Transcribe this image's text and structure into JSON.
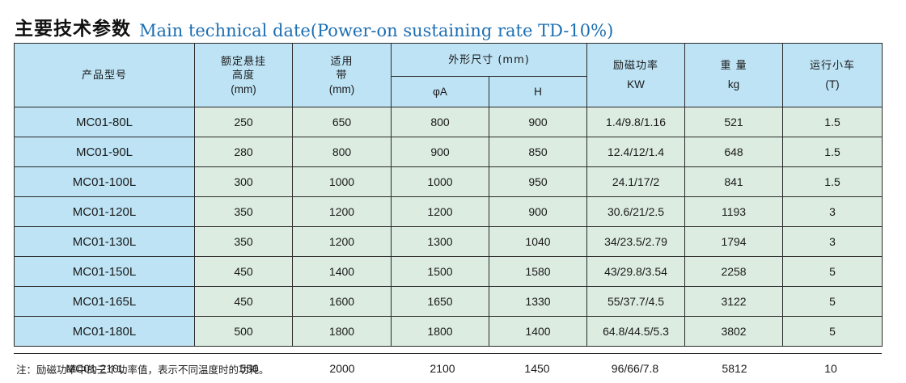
{
  "title": {
    "cn": "主要技术参数",
    "en": "Main technical date(Power-on sustaining rate TD-10%)"
  },
  "headers": {
    "model": "产品型号",
    "height_l1": "额定悬挂",
    "height_l2": "高度",
    "height_l3": "(mm)",
    "belt_l1": "适用",
    "belt_l2": "带",
    "belt_l3": "(mm)",
    "dims": "外形尺寸 (mm)",
    "dim_a": "φA",
    "dim_h": "H",
    "power_l1": "励磁功率",
    "power_l2": "KW",
    "weight_l1": "重 量",
    "weight_l2": "kg",
    "trolley_l1": "运行小车",
    "trolley_l2": "(T)"
  },
  "rows": [
    {
      "model": "MC01-80L",
      "height": "250",
      "belt": "650",
      "a": "800",
      "h": "900",
      "power": "1.4/9.8/1.16",
      "weight": "521",
      "trolley": "1.5"
    },
    {
      "model": "MC01-90L",
      "height": "280",
      "belt": "800",
      "a": "900",
      "h": "850",
      "power": "12.4/12/1.4",
      "weight": "648",
      "trolley": "1.5"
    },
    {
      "model": "MC01-100L",
      "height": "300",
      "belt": "1000",
      "a": "1000",
      "h": "950",
      "power": "24.1/17/2",
      "weight": "841",
      "trolley": "1.5"
    },
    {
      "model": "MC01-120L",
      "height": "350",
      "belt": "1200",
      "a": "1200",
      "h": "900",
      "power": "30.6/21/2.5",
      "weight": "1193",
      "trolley": "3"
    },
    {
      "model": "MC01-130L",
      "height": "350",
      "belt": "1200",
      "a": "1300",
      "h": "1040",
      "power": "34/23.5/2.79",
      "weight": "1794",
      "trolley": "3"
    },
    {
      "model": "MC01-150L",
      "height": "450",
      "belt": "1400",
      "a": "1500",
      "h": "1580",
      "power": "43/29.8/3.54",
      "weight": "2258",
      "trolley": "5"
    },
    {
      "model": "MC01-165L",
      "height": "450",
      "belt": "1600",
      "a": "1650",
      "h": "1330",
      "power": "55/37.7/4.5",
      "weight": "3122",
      "trolley": "5"
    },
    {
      "model": "MC01-180L",
      "height": "500",
      "belt": "1800",
      "a": "1800",
      "h": "1400",
      "power": "64.8/44.5/5.3",
      "weight": "3802",
      "trolley": "5"
    }
  ],
  "last_row": {
    "model": "MC01-210L",
    "height": "550",
    "belt": "2000",
    "a": "2100",
    "h": "1450",
    "power": "96/66/7.8",
    "weight": "5812",
    "trolley": "10"
  },
  "note": "注：励磁功率中的三个功率值，表示不同温度时的功耗。",
  "colors": {
    "header_bg": "#bde3f5",
    "body_bg": "#dcece0",
    "title_en": "#1d6fb3"
  }
}
